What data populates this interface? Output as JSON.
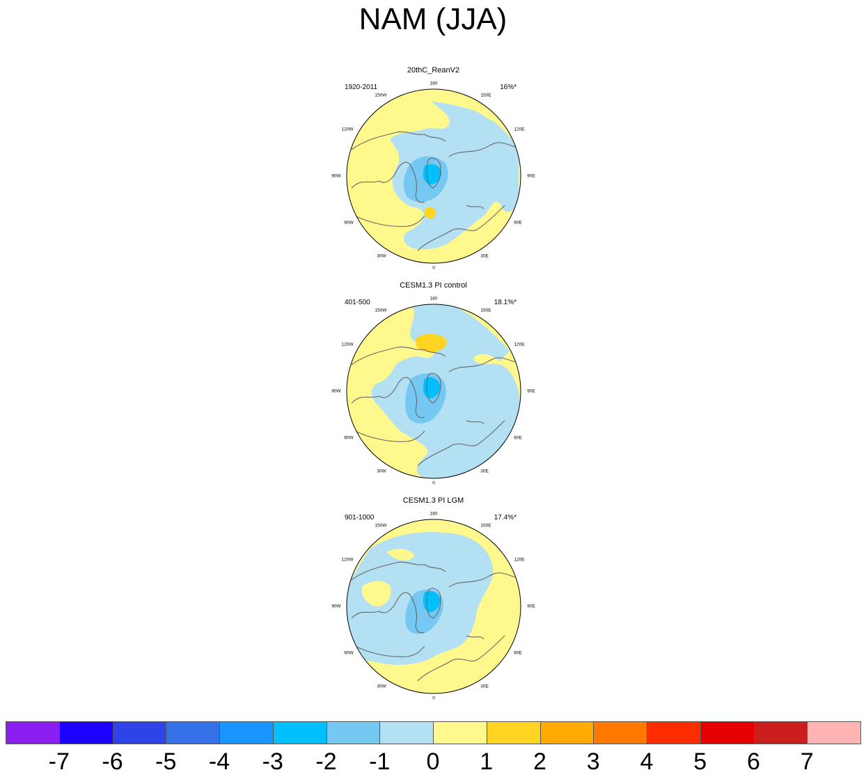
{
  "title": "NAM (JJA)",
  "panels": [
    {
      "title": "20thC_ReanV2",
      "left_text": "1920-2011",
      "right_text": "16%*",
      "lon_labels": {
        "n180": "180",
        "w150": "150W",
        "e150": "150E",
        "w120": "120W",
        "e120": "120E",
        "w90": "90W",
        "e90": "90E",
        "w60": "60W",
        "e60": "60E",
        "w30": "30W",
        "e30": "30E",
        "s0": "0"
      }
    },
    {
      "title": "CESM1.3 PI control",
      "left_text": "401-500",
      "right_text": "18.1%*",
      "lon_labels": {
        "n180": "180",
        "w150": "150W",
        "e150": "150E",
        "w120": "120W",
        "e120": "120E",
        "w90": "90W",
        "e90": "90E",
        "w60": "60W",
        "e60": "60E",
        "w30": "30W",
        "e30": "30E",
        "s0": "0"
      }
    },
    {
      "title": "CESM1.3 PI LGM",
      "left_text": "901-1000",
      "right_text": "17.4%*",
      "lon_labels": {
        "n180": "180",
        "w150": "150W",
        "e150": "150E",
        "w120": "120W",
        "e120": "120E",
        "w90": "90W",
        "e90": "90E",
        "w60": "60W",
        "e60": "60E",
        "w30": "30W",
        "e30": "30E",
        "s0": "0"
      }
    }
  ],
  "colorbar": {
    "colors": [
      "#8a1ef0",
      "#1e00ff",
      "#2e44e8",
      "#3470e6",
      "#1a95ff",
      "#00bfff",
      "#74c8f2",
      "#b3e0f3",
      "#fff98d",
      "#ffd423",
      "#ffaa00",
      "#ff7800",
      "#ff2d00",
      "#e60000",
      "#cd1e1e",
      "#ffb4b4"
    ],
    "labels": [
      "-7",
      "-6",
      "-5",
      "-4",
      "-3",
      "-2",
      "-1",
      "0",
      "1",
      "2",
      "3",
      "4",
      "5",
      "6",
      "7"
    ]
  },
  "palette": {
    "positive": "#fff98d",
    "positive_strong": "#ffd423",
    "negative": "#b3e0f3",
    "negative_mid": "#74c8f2",
    "negative_strong": "#00bfff",
    "coastline": "#666666"
  }
}
